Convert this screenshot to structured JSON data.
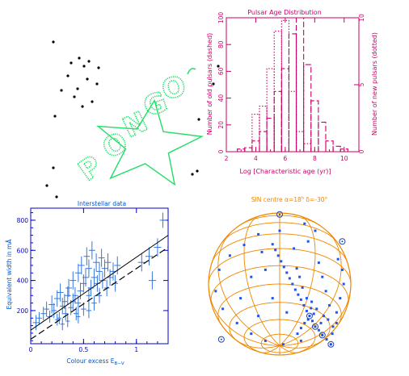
{
  "colors": {
    "pulsar": "#cc0066",
    "interstellar_axes": "#0000cc",
    "interstellar_points": "#3377dd",
    "interstellar_title": "#0055cc",
    "globe": "#ee8800",
    "globe_points": "#2255ee",
    "star": "#22dd66",
    "black": "#000000"
  },
  "logo": {
    "text": "PONGO",
    "icon": "star-icon"
  },
  "chart_data": [
    {
      "id": "pulsar",
      "type": "bar",
      "title": "Pulsar Age Distribution",
      "xlabel": "Log [Characteristic age (yr)]",
      "ylabel_left": "Number of old pulsars (dashed)",
      "ylabel_right": "Number of new pulsars (dotted)",
      "xlim": [
        2,
        11
      ],
      "ylim_left": [
        0,
        100
      ],
      "ylim_right": [
        0,
        10
      ],
      "x_ticks": [
        "2",
        "4",
        "6",
        "8",
        "10"
      ],
      "y_ticks_left": [
        "0",
        "20",
        "40",
        "60",
        "80",
        "100"
      ],
      "y_ticks_right": [
        "0",
        "5",
        "10"
      ],
      "series": [
        {
          "style": "dashed",
          "x": [
            2.5,
            3.0,
            3.5,
            4.0,
            4.5,
            5.0,
            5.5,
            6.0,
            6.5,
            7.0,
            7.5,
            8.0,
            8.5,
            9.0,
            9.5,
            10.0,
            10.5
          ],
          "values": [
            0,
            2,
            3,
            8,
            15,
            25,
            45,
            62,
            88,
            100,
            65,
            38,
            22,
            8,
            4,
            2,
            0
          ]
        },
        {
          "style": "dotted",
          "x": [
            3.5,
            4.0,
            4.5,
            5.0,
            5.5,
            6.0,
            6.5,
            7.0,
            7.5,
            8.0
          ],
          "values": [
            0,
            2.8,
            3.4,
            6.2,
            9.0,
            9.8,
            4.5,
            1.5,
            0.6,
            0
          ]
        }
      ]
    },
    {
      "id": "interstellar",
      "type": "scatter",
      "title": "Interstellar data",
      "xlabel": "Colour excess E",
      "xlabel_sub": "B−V",
      "ylabel": "Equivalent width in mÅ",
      "xlim": [
        0,
        1.3
      ],
      "ylim": [
        -20,
        880
      ],
      "x_ticks": [
        "0",
        "0.5",
        "1"
      ],
      "y_ticks": [
        "200",
        "400",
        "600",
        "800"
      ],
      "fit_solid": {
        "x": [
          0,
          1.3
        ],
        "y": [
          70,
          700
        ]
      },
      "fit_dashed": {
        "x": [
          0,
          1.3
        ],
        "y": [
          10,
          620
        ]
      },
      "points": [
        [
          0.05,
          120,
          30,
          50
        ],
        [
          0.08,
          150,
          25,
          40
        ],
        [
          0.12,
          180,
          25,
          45
        ],
        [
          0.15,
          210,
          25,
          50
        ],
        [
          0.18,
          160,
          25,
          40
        ],
        [
          0.2,
          240,
          30,
          60
        ],
        [
          0.22,
          200,
          25,
          50
        ],
        [
          0.25,
          280,
          30,
          55
        ],
        [
          0.27,
          150,
          20,
          40
        ],
        [
          0.28,
          320,
          30,
          60
        ],
        [
          0.3,
          230,
          25,
          55
        ],
        [
          0.32,
          260,
          25,
          50
        ],
        [
          0.33,
          180,
          25,
          45
        ],
        [
          0.35,
          300,
          30,
          60
        ],
        [
          0.36,
          350,
          30,
          60
        ],
        [
          0.38,
          220,
          25,
          50
        ],
        [
          0.4,
          260,
          25,
          55
        ],
        [
          0.4,
          400,
          30,
          60
        ],
        [
          0.42,
          300,
          25,
          55
        ],
        [
          0.43,
          180,
          25,
          45
        ],
        [
          0.45,
          450,
          30,
          60
        ],
        [
          0.45,
          250,
          25,
          50
        ],
        [
          0.47,
          330,
          30,
          55
        ],
        [
          0.48,
          500,
          30,
          60
        ],
        [
          0.5,
          380,
          30,
          60
        ],
        [
          0.5,
          210,
          25,
          45
        ],
        [
          0.52,
          420,
          30,
          60
        ],
        [
          0.53,
          560,
          30,
          60
        ],
        [
          0.55,
          300,
          25,
          55
        ],
        [
          0.55,
          480,
          30,
          60
        ],
        [
          0.57,
          350,
          30,
          55
        ],
        [
          0.58,
          600,
          30,
          60
        ],
        [
          0.6,
          420,
          30,
          60
        ],
        [
          0.6,
          250,
          25,
          50
        ],
        [
          0.62,
          520,
          30,
          60
        ],
        [
          0.63,
          380,
          30,
          55
        ],
        [
          0.65,
          460,
          30,
          60
        ],
        [
          0.65,
          300,
          25,
          50
        ],
        [
          0.67,
          550,
          30,
          60
        ],
        [
          0.68,
          400,
          30,
          55
        ],
        [
          0.7,
          480,
          30,
          60
        ],
        [
          0.72,
          350,
          25,
          55
        ],
        [
          0.73,
          520,
          30,
          60
        ],
        [
          0.75,
          420,
          30,
          55
        ],
        [
          0.78,
          460,
          30,
          60
        ],
        [
          0.8,
          380,
          25,
          55
        ],
        [
          0.82,
          500,
          30,
          60
        ],
        [
          0.35,
          130,
          20,
          40
        ],
        [
          0.3,
          110,
          20,
          40
        ],
        [
          0.25,
          140,
          20,
          40
        ],
        [
          0.45,
          160,
          20,
          45
        ],
        [
          0.55,
          200,
          25,
          50
        ],
        [
          1.05,
          520,
          35,
          60
        ],
        [
          1.12,
          560,
          35,
          60
        ],
        [
          1.15,
          400,
          35,
          60
        ],
        [
          1.25,
          800,
          30,
          50
        ],
        [
          1.2,
          620,
          35,
          60
        ]
      ]
    },
    {
      "id": "globe",
      "type": "scatter",
      "title_parts": [
        "SIN centre α=18",
        "h",
        " δ=-30°"
      ],
      "projection": "orthographic",
      "points_xy": [
        [
          0.72,
          -0.85
        ],
        [
          0.66,
          -0.78
        ],
        [
          0.6,
          -0.72
        ],
        [
          0.55,
          -0.65
        ],
        [
          0.5,
          -0.6
        ],
        [
          0.46,
          -0.52
        ],
        [
          0.42,
          -0.45
        ],
        [
          0.38,
          -0.38
        ],
        [
          0.34,
          -0.3
        ],
        [
          0.3,
          -0.22
        ],
        [
          0.26,
          -0.15
        ],
        [
          0.22,
          -0.08
        ],
        [
          0.18,
          0.0
        ],
        [
          0.14,
          0.08
        ],
        [
          0.1,
          0.16
        ],
        [
          0.06,
          0.24
        ],
        [
          0.02,
          0.32
        ],
        [
          -0.02,
          0.4
        ],
        [
          -0.06,
          0.48
        ],
        [
          -0.1,
          0.56
        ],
        [
          0.75,
          -0.6
        ],
        [
          0.8,
          -0.4
        ],
        [
          0.85,
          -0.2
        ],
        [
          0.9,
          0.0
        ],
        [
          0.88,
          0.2
        ],
        [
          0.82,
          0.35
        ],
        [
          0.7,
          -0.3
        ],
        [
          0.65,
          -0.1
        ],
        [
          0.6,
          0.1
        ],
        [
          0.55,
          0.3
        ],
        [
          -0.3,
          0.7
        ],
        [
          -0.5,
          0.55
        ],
        [
          -0.7,
          0.4
        ],
        [
          -0.85,
          0.2
        ],
        [
          -0.9,
          -0.1
        ],
        [
          -0.8,
          -0.35
        ],
        [
          -0.6,
          -0.55
        ],
        [
          -0.4,
          -0.7
        ],
        [
          -0.2,
          -0.8
        ],
        [
          0.05,
          -0.85
        ],
        [
          0.3,
          -0.8
        ],
        [
          -0.2,
          0.2
        ],
        [
          -0.4,
          0.1
        ],
        [
          -0.1,
          -0.2
        ],
        [
          0.1,
          -0.4
        ],
        [
          0.2,
          0.5
        ],
        [
          0.4,
          0.6
        ],
        [
          0.5,
          0.75
        ],
        [
          0.35,
          0.85
        ],
        [
          0.0,
          0.75
        ],
        [
          -0.25,
          0.45
        ],
        [
          -0.55,
          -0.2
        ],
        [
          -0.3,
          -0.45
        ],
        [
          0.45,
          -0.25
        ],
        [
          0.52,
          -0.35
        ],
        [
          0.48,
          -0.42
        ],
        [
          0.4,
          -0.5
        ],
        [
          0.35,
          -0.55
        ],
        [
          0.3,
          -0.62
        ],
        [
          0.25,
          -0.7
        ],
        [
          0.58,
          -0.55
        ],
        [
          0.62,
          -0.45
        ],
        [
          0.68,
          -0.5
        ],
        [
          0.74,
          -0.7
        ],
        [
          0.8,
          -0.55
        ],
        [
          0.44,
          -0.34
        ],
        [
          0.38,
          -0.2
        ],
        [
          0.32,
          -0.05
        ],
        [
          0.28,
          0.1
        ],
        [
          0.24,
          0.22
        ]
      ],
      "circled_xy": [
        [
          0.72,
          -0.85
        ],
        [
          0.5,
          -0.6
        ],
        [
          0.42,
          -0.45
        ],
        [
          -0.82,
          -0.78
        ],
        [
          0.88,
          0.6
        ],
        [
          0.0,
          0.98
        ],
        [
          0.6,
          -0.72
        ]
      ]
    }
  ]
}
